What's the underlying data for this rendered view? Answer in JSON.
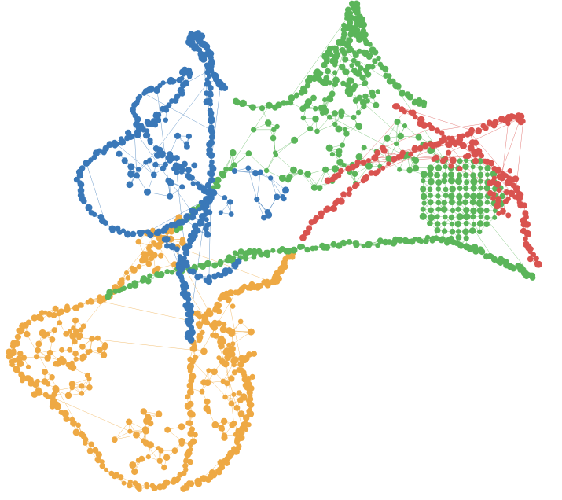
{
  "graph": {
    "type": "force-directed network",
    "clusters": [
      {
        "id": "blue",
        "color": "#3a78b8"
      },
      {
        "id": "green",
        "color": "#5bb55a"
      },
      {
        "id": "orange",
        "color": "#eea944"
      },
      {
        "id": "red",
        "color": "#d9534f"
      }
    ],
    "node_count_approx": 1100
  }
}
